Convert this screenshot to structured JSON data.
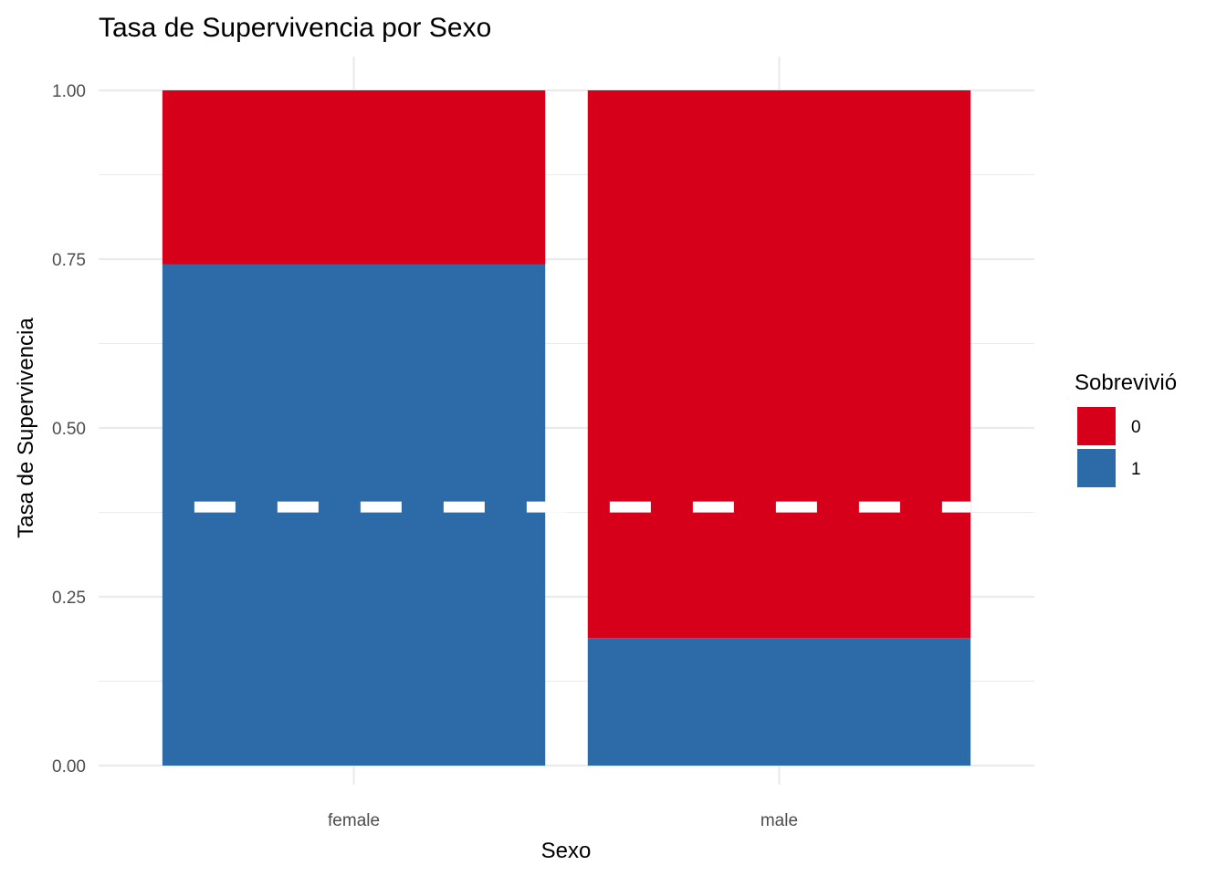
{
  "chart_data": {
    "type": "bar",
    "stacked": true,
    "title": "Tasa de Supervivencia por Sexo",
    "xlabel": "Sexo",
    "ylabel": "Tasa de Supervivencia",
    "categories": [
      "female",
      "male"
    ],
    "series": [
      {
        "name": "0",
        "values": [
          0.258,
          0.811
        ],
        "color": "#D7001A"
      },
      {
        "name": "1",
        "values": [
          0.742,
          0.189
        ],
        "color": "#2D6AA8"
      }
    ],
    "ylim": [
      0,
      1
    ],
    "yticks": [
      "0.00",
      "0.25",
      "0.50",
      "0.75",
      "1.00"
    ],
    "reference_line": {
      "value": 0.383,
      "style": "dashed",
      "color": "#ffffff"
    },
    "legend": {
      "title": "Sobrevivió",
      "position": "right"
    },
    "grid": true
  }
}
